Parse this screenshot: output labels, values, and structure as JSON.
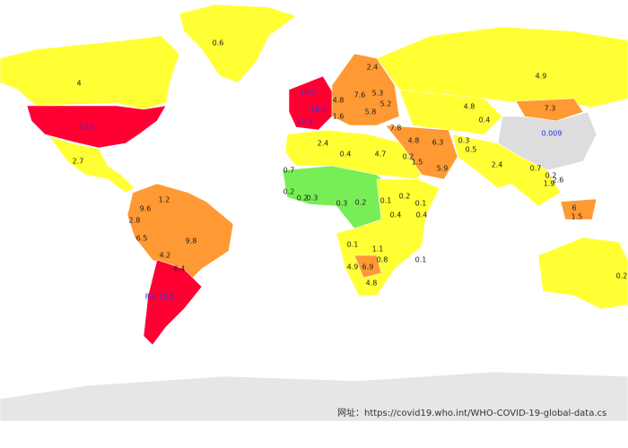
{
  "map": {
    "labels": [
      0.6,
      4,
      4.9,
      2.4,
      12.2,
      4.8,
      7.3,
      0.009,
      2.7,
      2.4,
      0.4,
      4.7,
      0.2,
      1.5,
      7.8,
      4.8,
      6.3,
      0.3,
      0.4,
      0.5,
      5.9,
      2.4,
      0.7,
      0.7,
      0.2,
      1.9,
      2.6,
      0.2,
      0.2,
      0.3,
      0.1,
      0.2,
      0.1,
      0.2,
      0.3,
      0.4,
      0.4,
      1.2,
      9.6,
      2.8,
      6.5,
      9.8,
      4.2,
      6.4,
      8.6,
      11.5,
      0.1,
      1.1,
      0.1,
      4.9,
      6.9,
      0.8,
      4.8,
      0.2,
      6,
      1.5,
      10.5,
      10.2,
      10.4,
      4.8,
      7.6,
      5.3,
      5.2,
      5.8,
      1.6
    ]
  },
  "footer": {
    "source": "网址：https://covid19.who.int/WHO-COVID-19-global-data.cs"
  }
}
